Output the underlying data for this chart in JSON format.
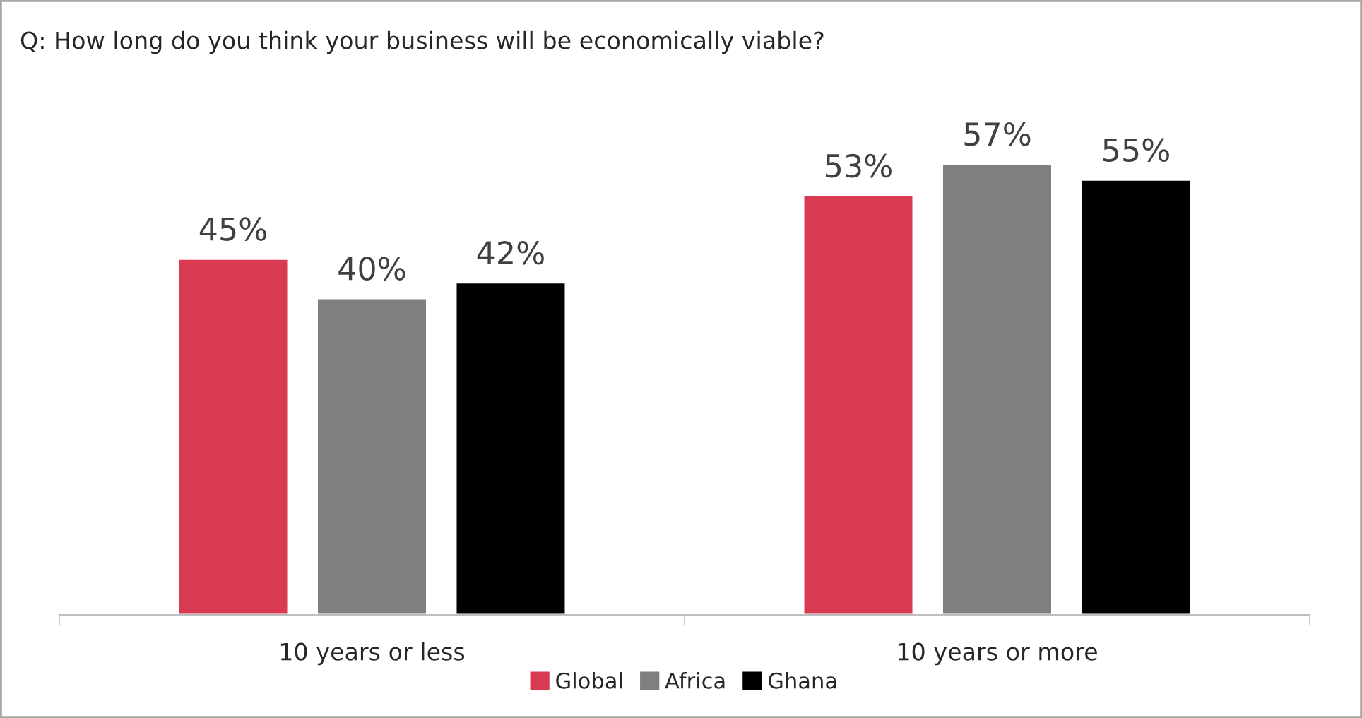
{
  "chart_data": {
    "type": "bar",
    "title": "Q: How long do you think your business will be economically viable?",
    "categories": [
      "10 years or less",
      "10 years or more"
    ],
    "series": [
      {
        "name": "Global",
        "color": "#d93951",
        "values": [
          45,
          53
        ],
        "value_labels": [
          "45%",
          "53%"
        ]
      },
      {
        "name": "Africa",
        "color": "#7f7f7f",
        "values": [
          40,
          57
        ],
        "value_labels": [
          "40%",
          "57%"
        ]
      },
      {
        "name": "Ghana",
        "color": "#000000",
        "values": [
          42,
          55
        ],
        "value_labels": [
          "42%",
          "55%"
        ]
      }
    ],
    "tick_labels": "x",
    "legend": "bottom",
    "grid": false
  }
}
